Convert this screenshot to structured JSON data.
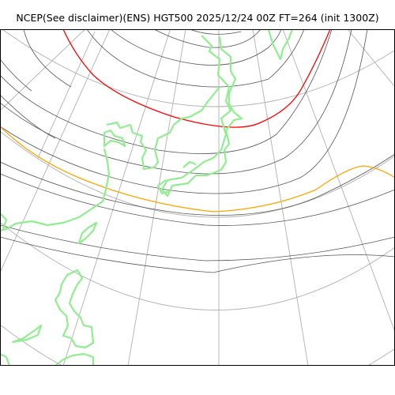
{
  "title": "NCEP(See disclaimer)(ENS) HGT500 2025/12/24 00Z FT=264 (init 1300Z)",
  "colors": {
    "contour": "#555555",
    "graticule": "#b0b0b0",
    "coastline": "#90ee90",
    "highlight_red": "#ff0000",
    "highlight_orange": "#ffa500",
    "frame": "#000000"
  }
}
